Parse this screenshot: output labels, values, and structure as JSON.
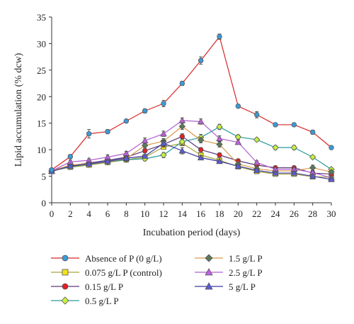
{
  "chart_data": {
    "type": "line",
    "xlabel": "Incubation period (days)",
    "ylabel": "Lipid accumulation (% dcw)",
    "xlim": [
      0,
      30
    ],
    "ylim": [
      0,
      35
    ],
    "xticks": [
      "0",
      "2",
      "4",
      "6",
      "8",
      "10",
      "12",
      "14",
      "16",
      "18",
      "20",
      "22",
      "24",
      "26",
      "28",
      "30"
    ],
    "yticks": [
      "0",
      "5",
      "10",
      "15",
      "20",
      "25",
      "30",
      "35"
    ],
    "grid": false,
    "legend_position": "bottom",
    "error_bars": true,
    "series": [
      {
        "name": "Absence of P (0 g/L)",
        "color": "#d62728",
        "marker": "circle",
        "marker_fill": "#3a9bd9",
        "x": [
          0,
          2,
          4,
          6,
          8,
          10,
          12,
          14,
          16,
          18,
          20,
          22,
          24,
          26,
          28,
          30
        ],
        "values": [
          6.2,
          8.7,
          13.0,
          13.4,
          15.4,
          17.3,
          18.7,
          22.5,
          26.8,
          31.3,
          18.2,
          16.6,
          14.7,
          14.7,
          13.3,
          10.4
        ],
        "errors": [
          0.3,
          0.4,
          0.8,
          0.4,
          0.3,
          0.4,
          0.6,
          0.4,
          0.7,
          0.5,
          0.3,
          0.6,
          0.3,
          0.3,
          0.4,
          0.3
        ]
      },
      {
        "name": "0.075 g/L P (control)",
        "color": "#a6a23a",
        "marker": "square",
        "marker_fill": "#f2e21a",
        "x": [
          0,
          2,
          4,
          6,
          8,
          10,
          12,
          14,
          16,
          18,
          20,
          22,
          24,
          26,
          28,
          30
        ],
        "values": [
          6.0,
          6.7,
          7.1,
          7.6,
          8.1,
          8.6,
          10.5,
          11.2,
          9.0,
          8.0,
          6.8,
          5.9,
          5.4,
          5.4,
          4.9,
          4.8
        ],
        "errors": [
          0.3,
          0.3,
          0.3,
          0.3,
          0.3,
          0.3,
          0.4,
          0.4,
          0.3,
          0.3,
          0.3,
          0.3,
          0.3,
          0.3,
          0.3,
          0.3
        ]
      },
      {
        "name": "0.15 g/L P",
        "color": "#5a3a7a",
        "marker": "circle",
        "marker_fill": "#e02020",
        "x": [
          0,
          2,
          4,
          6,
          8,
          10,
          12,
          14,
          16,
          18,
          20,
          22,
          24,
          26,
          28,
          30
        ],
        "values": [
          6.1,
          7.0,
          7.5,
          8.0,
          8.6,
          9.8,
          11.0,
          12.5,
          10.0,
          9.0,
          7.9,
          7.1,
          6.6,
          6.6,
          5.6,
          5.4
        ],
        "errors": [
          0.3,
          0.3,
          0.4,
          0.3,
          0.3,
          0.4,
          0.5,
          0.5,
          0.4,
          0.4,
          0.3,
          0.3,
          0.3,
          0.3,
          0.3,
          0.3
        ]
      },
      {
        "name": "0.5 g/L P",
        "color": "#2a9a9a",
        "marker": "diamond",
        "marker_fill": "#c8f040",
        "x": [
          0,
          2,
          4,
          6,
          8,
          10,
          12,
          14,
          16,
          18,
          20,
          22,
          24,
          26,
          28,
          30
        ],
        "values": [
          6.0,
          6.8,
          7.3,
          7.7,
          8.1,
          8.3,
          9.0,
          11.5,
          12.3,
          14.3,
          12.4,
          11.9,
          10.4,
          10.4,
          8.6,
          6.3
        ],
        "errors": [
          0.3,
          0.3,
          0.3,
          0.3,
          0.3,
          0.4,
          0.5,
          0.6,
          0.6,
          0.5,
          0.4,
          0.3,
          0.4,
          0.4,
          0.3,
          0.3
        ]
      },
      {
        "name": "1.5 g/L P",
        "color": "#d89a4a",
        "marker": "diamond",
        "marker_fill": "#5a7a5a",
        "x": [
          0,
          2,
          4,
          6,
          8,
          10,
          12,
          14,
          16,
          18,
          20,
          22,
          24,
          26,
          28,
          30
        ],
        "values": [
          6.0,
          7.1,
          7.4,
          7.7,
          8.3,
          10.8,
          11.6,
          14.4,
          11.8,
          11.0,
          7.3,
          6.4,
          6.0,
          6.0,
          6.6,
          5.8
        ],
        "errors": [
          0.3,
          0.3,
          0.3,
          0.3,
          0.4,
          0.4,
          0.5,
          0.6,
          0.5,
          0.5,
          0.3,
          0.3,
          0.3,
          0.3,
          0.5,
          0.3
        ]
      },
      {
        "name": "2.5 g/L P",
        "color": "#b060d0",
        "marker": "triangle",
        "marker_fill": "#c060e0",
        "x": [
          0,
          2,
          4,
          6,
          8,
          10,
          12,
          14,
          16,
          18,
          20,
          22,
          24,
          26,
          28,
          30
        ],
        "values": [
          6.0,
          7.7,
          8.0,
          8.6,
          9.3,
          11.7,
          13.0,
          15.5,
          15.3,
          12.1,
          11.4,
          7.6,
          6.3,
          6.3,
          5.7,
          4.7
        ],
        "errors": [
          0.3,
          0.3,
          0.3,
          0.4,
          0.4,
          0.5,
          0.5,
          0.5,
          0.5,
          0.5,
          0.4,
          0.3,
          0.3,
          0.3,
          0.3,
          0.3
        ]
      },
      {
        "name": "5 g/L P",
        "color": "#3a3aa0",
        "marker": "triangle",
        "marker_fill": "#5a5ad8",
        "x": [
          0,
          2,
          4,
          6,
          8,
          10,
          12,
          14,
          16,
          18,
          20,
          22,
          24,
          26,
          28,
          30
        ],
        "values": [
          5.9,
          6.9,
          7.3,
          7.8,
          8.4,
          8.8,
          11.2,
          9.8,
          8.5,
          7.8,
          6.9,
          6.1,
          5.6,
          5.6,
          5.0,
          4.4
        ],
        "errors": [
          0.3,
          0.3,
          0.3,
          0.3,
          0.3,
          0.3,
          0.5,
          0.6,
          0.4,
          0.3,
          0.3,
          0.3,
          0.3,
          0.3,
          0.3,
          0.3
        ]
      }
    ],
    "legend": [
      {
        "series": 0,
        "column": 0,
        "row": 0
      },
      {
        "series": 1,
        "column": 0,
        "row": 1
      },
      {
        "series": 2,
        "column": 0,
        "row": 2
      },
      {
        "series": 3,
        "column": 0,
        "row": 3
      },
      {
        "series": 4,
        "column": 1,
        "row": 0
      },
      {
        "series": 5,
        "column": 1,
        "row": 1
      },
      {
        "series": 6,
        "column": 1,
        "row": 2
      }
    ]
  }
}
